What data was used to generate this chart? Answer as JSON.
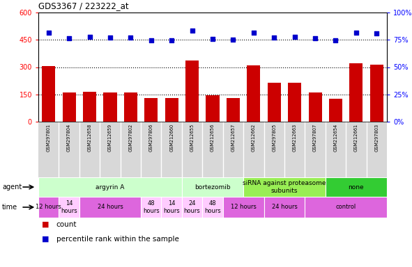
{
  "title": "GDS3367 / 223222_at",
  "samples": [
    "GSM297801",
    "GSM297804",
    "GSM212658",
    "GSM212659",
    "GSM297802",
    "GSM297806",
    "GSM212660",
    "GSM212655",
    "GSM212656",
    "GSM212657",
    "GSM212662",
    "GSM297805",
    "GSM212663",
    "GSM297807",
    "GSM212654",
    "GSM212661",
    "GSM297803"
  ],
  "counts": [
    305,
    160,
    165,
    162,
    162,
    130,
    130,
    335,
    145,
    130,
    310,
    215,
    215,
    160,
    128,
    320,
    315
  ],
  "percentiles": [
    490,
    460,
    465,
    462,
    462,
    448,
    448,
    500,
    455,
    452,
    490,
    462,
    468,
    458,
    448,
    488,
    487
  ],
  "bar_color": "#cc0000",
  "dot_color": "#0000cc",
  "hline_values": [
    150,
    300,
    450
  ],
  "agent_groups": [
    {
      "label": "argyrin A",
      "start": 0,
      "end": 7,
      "color": "#ccffcc"
    },
    {
      "label": "bortezomib",
      "start": 7,
      "end": 10,
      "color": "#ccffcc"
    },
    {
      "label": "siRNA against proteasome\nsubunits",
      "start": 10,
      "end": 14,
      "color": "#99ee55"
    },
    {
      "label": "none",
      "start": 14,
      "end": 17,
      "color": "#33cc33"
    }
  ],
  "time_groups": [
    {
      "label": "12 hours",
      "start": 0,
      "end": 1,
      "color": "#dd66dd"
    },
    {
      "label": "14\nhours",
      "start": 1,
      "end": 2,
      "color": "#ffccff"
    },
    {
      "label": "24 hours",
      "start": 2,
      "end": 5,
      "color": "#dd66dd"
    },
    {
      "label": "48\nhours",
      "start": 5,
      "end": 6,
      "color": "#ffccff"
    },
    {
      "label": "14\nhours",
      "start": 6,
      "end": 7,
      "color": "#ffccff"
    },
    {
      "label": "24\nhours",
      "start": 7,
      "end": 8,
      "color": "#ffccff"
    },
    {
      "label": "48\nhours",
      "start": 8,
      "end": 9,
      "color": "#ffccff"
    },
    {
      "label": "12 hours",
      "start": 9,
      "end": 11,
      "color": "#dd66dd"
    },
    {
      "label": "24 hours",
      "start": 11,
      "end": 13,
      "color": "#dd66dd"
    },
    {
      "label": "control",
      "start": 13,
      "end": 17,
      "color": "#dd66dd"
    }
  ],
  "sample_box_color": "#d8d8d8",
  "bg_color": "#ffffff"
}
